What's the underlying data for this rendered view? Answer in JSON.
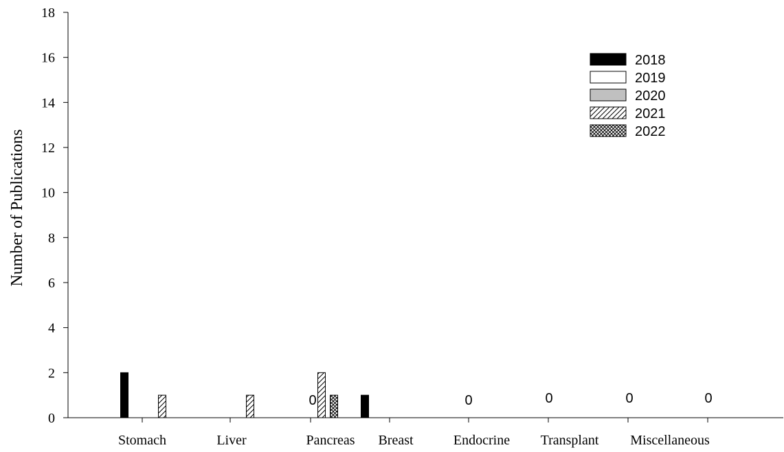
{
  "chart_data": {
    "type": "bar",
    "ylabel": "Number of Publications",
    "xlabel": "",
    "ylim": [
      0,
      18
    ],
    "yticks": [
      0,
      2,
      4,
      6,
      8,
      10,
      12,
      14,
      16,
      18
    ],
    "categories": [
      "Stomach",
      "Liver",
      "Pancreas",
      "Breast",
      "Endocrine",
      "Transplant",
      "Miscellaneous"
    ],
    "series": [
      {
        "name": "2018",
        "fill": "solid-black",
        "values": [
          2,
          0,
          0,
          1,
          0,
          0,
          0
        ]
      },
      {
        "name": "2019",
        "fill": "white",
        "values": [
          0,
          0,
          0,
          0,
          0,
          0,
          0
        ]
      },
      {
        "name": "2020",
        "fill": "gray",
        "values": [
          0,
          0,
          0,
          0,
          0,
          0,
          0
        ]
      },
      {
        "name": "2021",
        "fill": "diagonal-hatch",
        "values": [
          1,
          1,
          2,
          0,
          0,
          0,
          0
        ]
      },
      {
        "name": "2022",
        "fill": "crosshatch",
        "values": [
          0,
          0,
          1,
          0,
          0,
          0,
          0
        ]
      }
    ],
    "zero_labels": [
      {
        "category": "Pancreas",
        "text": "0"
      },
      {
        "category": "Endocrine",
        "text": "0"
      },
      {
        "category": "Transplant",
        "text": "0"
      },
      {
        "category": "Miscellaneous",
        "text": "0"
      },
      {
        "category": "Miscellaneous",
        "text": "0"
      }
    ],
    "legend_position": "top-right",
    "grid": false,
    "colors": {
      "solid": "#000000",
      "gray": "#c0c0c0",
      "white": "#ffffff"
    }
  }
}
